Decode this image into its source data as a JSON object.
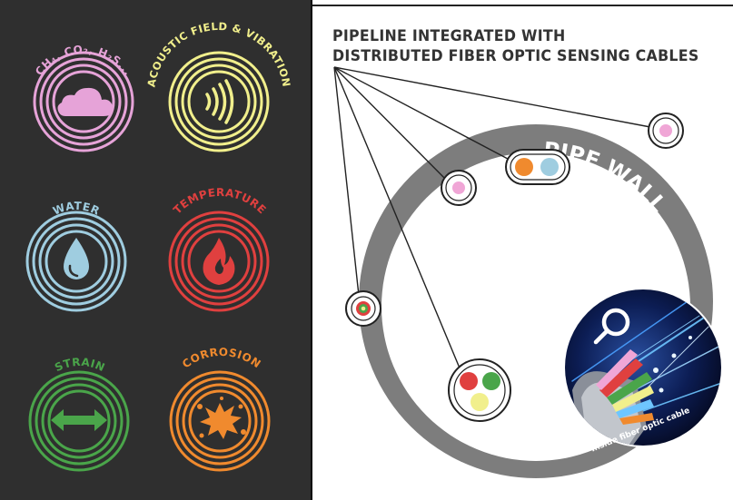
{
  "title": {
    "line1": "PIPELINE INTEGRATED WITH",
    "line2": "DISTRIBUTED FIBER OPTIC SENSING CABLES"
  },
  "pipe_label": "PIPE WALL",
  "inset_caption": "Inside fiber optic cable",
  "sensors": [
    {
      "id": "gas",
      "label": "CH₄, CO₂, H₂S...",
      "color": "#e6a3d8",
      "icon": "cloud-icon"
    },
    {
      "id": "acoustic",
      "label": "ACOUSTIC FIELD & VIBRATION",
      "color": "#f1ef8c",
      "icon": "sound-waves-icon"
    },
    {
      "id": "water",
      "label": "WATER",
      "color": "#9fcde0",
      "icon": "water-drop-icon"
    },
    {
      "id": "temperature",
      "label": "TEMPERATURE",
      "color": "#e0403f",
      "icon": "flame-icon"
    },
    {
      "id": "strain",
      "label": "STRAIN",
      "color": "#4aa54a",
      "icon": "double-arrow-icon"
    },
    {
      "id": "corrosion",
      "label": "CORROSION",
      "color": "#f08a2e",
      "icon": "splash-icon"
    }
  ],
  "colors": {
    "panel_background": "#2f2f2f",
    "pipe_wall": "#7d7d7d",
    "cable_pink": "#f0a6d6",
    "cable_orange": "#f08a2e",
    "cable_blue": "#9fcde0",
    "cable_red": "#e0403f",
    "cable_green": "#4aa54a",
    "cable_yellow": "#f1ef8c"
  }
}
